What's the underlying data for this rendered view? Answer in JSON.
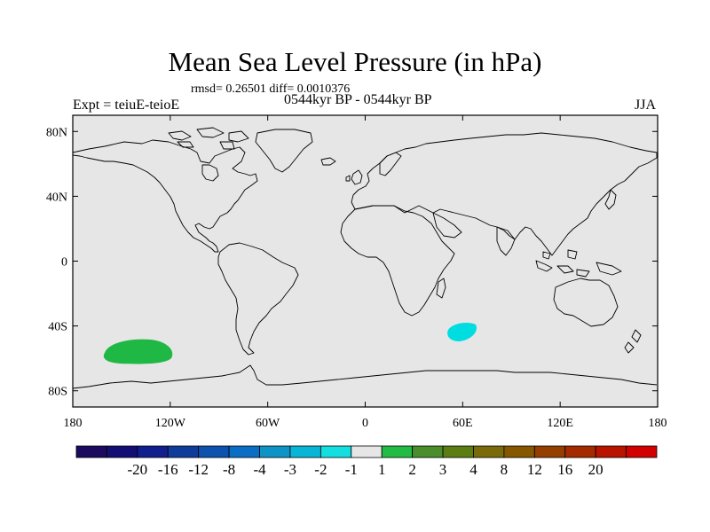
{
  "title": "Mean Sea Level Pressure (in hPa)",
  "stats": "rmsd= 0.26501 diff= 0.0010376",
  "experiment": "Expt = teiuE-teioE",
  "period": "0544kyr BP - 0544kyr BP",
  "season": "JJA",
  "map": {
    "background_color": "#e6e6e6",
    "coast_color": "#000000",
    "lat_labels": [
      {
        "lat": 80,
        "text": "80N"
      },
      {
        "lat": 40,
        "text": "40N"
      },
      {
        "lat": 0,
        "text": "0"
      },
      {
        "lat": -40,
        "text": "40S"
      },
      {
        "lat": -80,
        "text": "80S"
      }
    ],
    "lon_labels": [
      {
        "lon": -180,
        "text": "180"
      },
      {
        "lon": -120,
        "text": "120W"
      },
      {
        "lon": -60,
        "text": "60W"
      },
      {
        "lon": 0,
        "text": "0"
      },
      {
        "lon": 60,
        "text": "60E"
      },
      {
        "lon": 120,
        "text": "120E"
      },
      {
        "lon": 180,
        "text": "180"
      }
    ],
    "anomalies": [
      {
        "name": "south-pacific-positive-anomaly",
        "color": "#1fb844",
        "range": "1 to 2",
        "lon_center": -137,
        "lat_center": -57
      },
      {
        "name": "indian-ocean-negative-anomaly",
        "color": "#00dde0",
        "range": "-2 to -1",
        "lon_center": 60,
        "lat_center": -43
      }
    ]
  },
  "colorbar": {
    "colors": [
      "#1b0a5e",
      "#130e74",
      "#101e8e",
      "#0f3c9b",
      "#0e52b0",
      "#0a6ec4",
      "#0d93c6",
      "#09b5d6",
      "#14dee0",
      "#e6e6e6",
      "#22bb44",
      "#4a8d2c",
      "#5b7d12",
      "#7a6a0a",
      "#855800",
      "#943f00",
      "#a42a00",
      "#b81400",
      "#d20000"
    ],
    "labels": [
      "-20",
      "-16",
      "-12",
      "-8",
      "-4",
      "-3",
      "-2",
      "-1",
      "1",
      "2",
      "3",
      "4",
      "8",
      "12",
      "16",
      "20"
    ]
  }
}
